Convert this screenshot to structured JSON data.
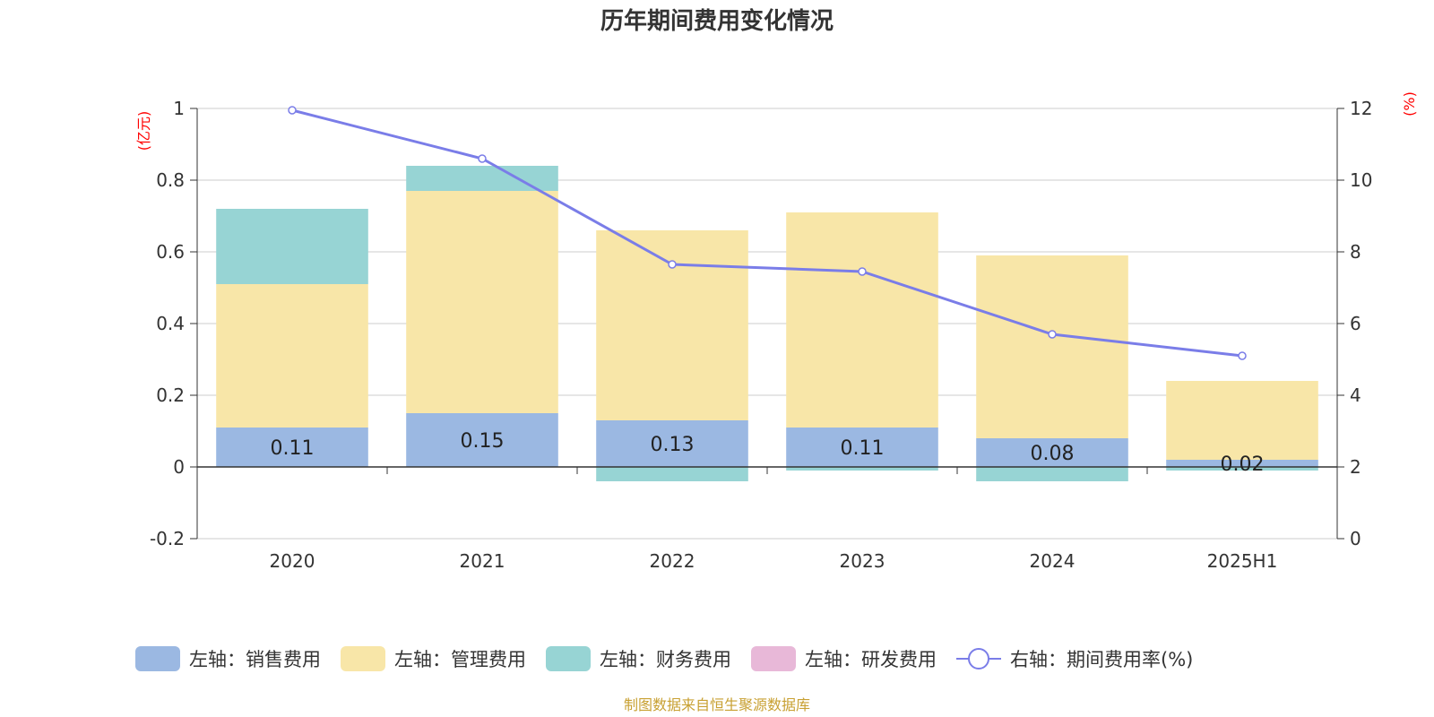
{
  "chart_data": {
    "type": "bar",
    "title": "历年期间费用变化情况",
    "categories": [
      "2020",
      "2021",
      "2022",
      "2023",
      "2024",
      "2025H1"
    ],
    "left_axis": {
      "unit": "(亿元)",
      "min": -0.2,
      "max": 1,
      "ticks": [
        -0.2,
        0,
        0.2,
        0.4,
        0.6,
        0.8,
        1
      ],
      "tick_labels": [
        "-0.2",
        "0",
        "0.2",
        "0.4",
        "0.6",
        "0.8",
        "1"
      ]
    },
    "right_axis": {
      "unit": "(%)",
      "min": 0,
      "max": 12,
      "ticks": [
        0,
        2,
        4,
        6,
        8,
        10,
        12
      ],
      "tick_labels": [
        "0",
        "2",
        "4",
        "6",
        "8",
        "10",
        "12"
      ]
    },
    "series": [
      {
        "name": "左轴：销售费用",
        "type": "bar",
        "axis": "left",
        "color": "#9bb8e2",
        "values": [
          0.11,
          0.15,
          0.13,
          0.11,
          0.08,
          0.02
        ],
        "labels": [
          "0.11",
          "0.15",
          "0.13",
          "0.11",
          "0.08",
          "0.02"
        ]
      },
      {
        "name": "左轴：管理费用",
        "type": "bar",
        "axis": "left",
        "color": "#f8e6a8",
        "values": [
          0.4,
          0.62,
          0.53,
          0.6,
          0.51,
          0.22
        ]
      },
      {
        "name": "左轴：财务费用",
        "type": "bar",
        "axis": "left",
        "color": "#97d4d4",
        "values": [
          0.21,
          0.07,
          -0.04,
          -0.01,
          -0.04,
          -0.01
        ]
      },
      {
        "name": "左轴：研发费用",
        "type": "bar",
        "axis": "left",
        "color": "#e8b8d8",
        "values": [
          0,
          0,
          0,
          0,
          0,
          0
        ]
      },
      {
        "name": "右轴：期间费用率(%)",
        "type": "line",
        "axis": "right",
        "color": "#7a7de8",
        "values": [
          11.95,
          10.6,
          7.65,
          7.45,
          5.7,
          5.1
        ]
      }
    ],
    "grid": true,
    "legend_position": "bottom"
  },
  "source_note": "制图数据来自恒生聚源数据库"
}
